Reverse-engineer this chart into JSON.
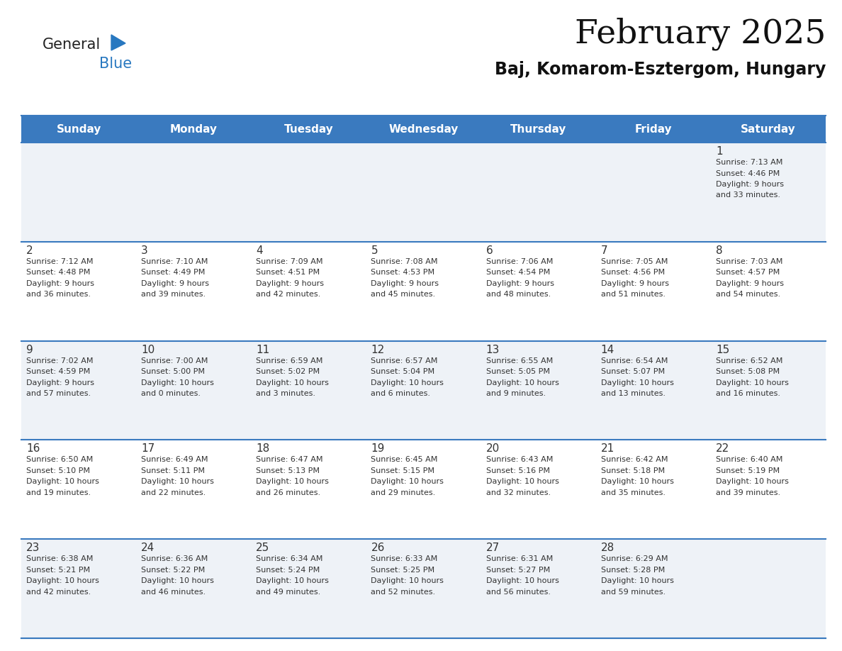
{
  "title": "February 2025",
  "subtitle": "Baj, Komarom-Esztergom, Hungary",
  "days_of_week": [
    "Sunday",
    "Monday",
    "Tuesday",
    "Wednesday",
    "Thursday",
    "Friday",
    "Saturday"
  ],
  "header_bg": "#3a7abf",
  "header_text": "#ffffff",
  "cell_bg": "#ffffff",
  "row1_bg": "#eef2f7",
  "cell_border": "#3a7abf",
  "day_number_color": "#333333",
  "info_text_color": "#333333",
  "logo_general_color": "#222222",
  "logo_blue_color": "#2878c0",
  "weeks": [
    [
      {
        "day": null,
        "info": ""
      },
      {
        "day": null,
        "info": ""
      },
      {
        "day": null,
        "info": ""
      },
      {
        "day": null,
        "info": ""
      },
      {
        "day": null,
        "info": ""
      },
      {
        "day": null,
        "info": ""
      },
      {
        "day": 1,
        "info": "Sunrise: 7:13 AM\nSunset: 4:46 PM\nDaylight: 9 hours\nand 33 minutes."
      }
    ],
    [
      {
        "day": 2,
        "info": "Sunrise: 7:12 AM\nSunset: 4:48 PM\nDaylight: 9 hours\nand 36 minutes."
      },
      {
        "day": 3,
        "info": "Sunrise: 7:10 AM\nSunset: 4:49 PM\nDaylight: 9 hours\nand 39 minutes."
      },
      {
        "day": 4,
        "info": "Sunrise: 7:09 AM\nSunset: 4:51 PM\nDaylight: 9 hours\nand 42 minutes."
      },
      {
        "day": 5,
        "info": "Sunrise: 7:08 AM\nSunset: 4:53 PM\nDaylight: 9 hours\nand 45 minutes."
      },
      {
        "day": 6,
        "info": "Sunrise: 7:06 AM\nSunset: 4:54 PM\nDaylight: 9 hours\nand 48 minutes."
      },
      {
        "day": 7,
        "info": "Sunrise: 7:05 AM\nSunset: 4:56 PM\nDaylight: 9 hours\nand 51 minutes."
      },
      {
        "day": 8,
        "info": "Sunrise: 7:03 AM\nSunset: 4:57 PM\nDaylight: 9 hours\nand 54 minutes."
      }
    ],
    [
      {
        "day": 9,
        "info": "Sunrise: 7:02 AM\nSunset: 4:59 PM\nDaylight: 9 hours\nand 57 minutes."
      },
      {
        "day": 10,
        "info": "Sunrise: 7:00 AM\nSunset: 5:00 PM\nDaylight: 10 hours\nand 0 minutes."
      },
      {
        "day": 11,
        "info": "Sunrise: 6:59 AM\nSunset: 5:02 PM\nDaylight: 10 hours\nand 3 minutes."
      },
      {
        "day": 12,
        "info": "Sunrise: 6:57 AM\nSunset: 5:04 PM\nDaylight: 10 hours\nand 6 minutes."
      },
      {
        "day": 13,
        "info": "Sunrise: 6:55 AM\nSunset: 5:05 PM\nDaylight: 10 hours\nand 9 minutes."
      },
      {
        "day": 14,
        "info": "Sunrise: 6:54 AM\nSunset: 5:07 PM\nDaylight: 10 hours\nand 13 minutes."
      },
      {
        "day": 15,
        "info": "Sunrise: 6:52 AM\nSunset: 5:08 PM\nDaylight: 10 hours\nand 16 minutes."
      }
    ],
    [
      {
        "day": 16,
        "info": "Sunrise: 6:50 AM\nSunset: 5:10 PM\nDaylight: 10 hours\nand 19 minutes."
      },
      {
        "day": 17,
        "info": "Sunrise: 6:49 AM\nSunset: 5:11 PM\nDaylight: 10 hours\nand 22 minutes."
      },
      {
        "day": 18,
        "info": "Sunrise: 6:47 AM\nSunset: 5:13 PM\nDaylight: 10 hours\nand 26 minutes."
      },
      {
        "day": 19,
        "info": "Sunrise: 6:45 AM\nSunset: 5:15 PM\nDaylight: 10 hours\nand 29 minutes."
      },
      {
        "day": 20,
        "info": "Sunrise: 6:43 AM\nSunset: 5:16 PM\nDaylight: 10 hours\nand 32 minutes."
      },
      {
        "day": 21,
        "info": "Sunrise: 6:42 AM\nSunset: 5:18 PM\nDaylight: 10 hours\nand 35 minutes."
      },
      {
        "day": 22,
        "info": "Sunrise: 6:40 AM\nSunset: 5:19 PM\nDaylight: 10 hours\nand 39 minutes."
      }
    ],
    [
      {
        "day": 23,
        "info": "Sunrise: 6:38 AM\nSunset: 5:21 PM\nDaylight: 10 hours\nand 42 minutes."
      },
      {
        "day": 24,
        "info": "Sunrise: 6:36 AM\nSunset: 5:22 PM\nDaylight: 10 hours\nand 46 minutes."
      },
      {
        "day": 25,
        "info": "Sunrise: 6:34 AM\nSunset: 5:24 PM\nDaylight: 10 hours\nand 49 minutes."
      },
      {
        "day": 26,
        "info": "Sunrise: 6:33 AM\nSunset: 5:25 PM\nDaylight: 10 hours\nand 52 minutes."
      },
      {
        "day": 27,
        "info": "Sunrise: 6:31 AM\nSunset: 5:27 PM\nDaylight: 10 hours\nand 56 minutes."
      },
      {
        "day": 28,
        "info": "Sunrise: 6:29 AM\nSunset: 5:28 PM\nDaylight: 10 hours\nand 59 minutes."
      },
      {
        "day": null,
        "info": ""
      }
    ]
  ]
}
